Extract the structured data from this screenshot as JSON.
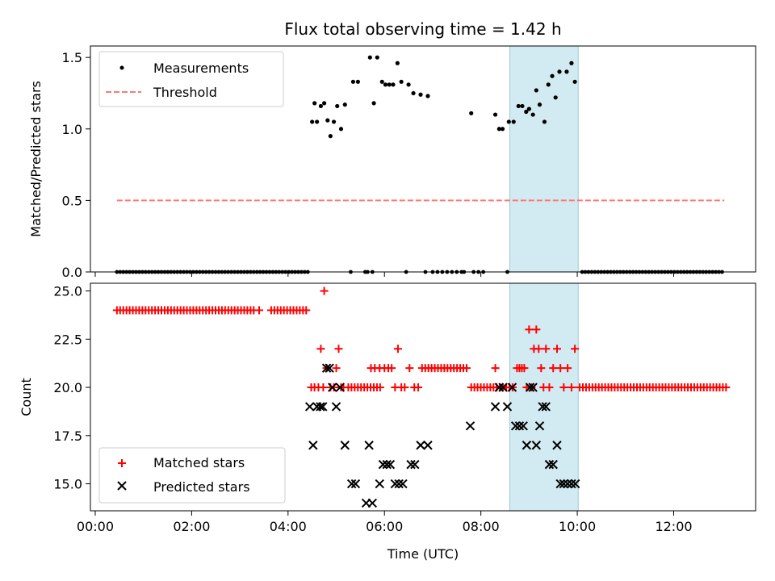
{
  "chart_data": [
    {
      "type": "scatter",
      "title": "Flux total observing time = 1.42 h",
      "xlabel": "",
      "ylabel": "Matched/Predicted stars",
      "xlim": [
        -0.1,
        13.7
      ],
      "ylim": [
        0.0,
        1.58
      ],
      "xticks": [
        0,
        2,
        4,
        6,
        8,
        10,
        12
      ],
      "yticks": [
        0.0,
        0.5,
        1.0,
        1.5
      ],
      "ytick_labels": [
        "0.0",
        "0.5",
        "1.0",
        "1.5"
      ],
      "highlight_span": [
        8.6,
        10.02
      ],
      "legend": {
        "location": "upper-left",
        "entries": [
          "Measurements",
          "Threshold"
        ]
      },
      "threshold": {
        "name": "Threshold",
        "y": 0.5,
        "x_range": [
          0.45,
          13.05
        ],
        "color": "#ff7777"
      },
      "zero_series": {
        "x_start": 0.45,
        "x_end": 4.42,
        "x_step": 0.066
      },
      "zero_points_tail": {
        "x_start": 10.1,
        "x_end": 13.05,
        "x_step": 0.066
      },
      "zero_points_extra": [
        5.3,
        5.6,
        5.65,
        5.75,
        6.45,
        6.85,
        7.0,
        7.1,
        7.2,
        7.3,
        7.4,
        7.5,
        7.6,
        7.65,
        7.85,
        7.95,
        8.05,
        8.55
      ],
      "series": [
        {
          "name": "Measurements",
          "color": "#000000",
          "points": [
            [
              4.5,
              1.05
            ],
            [
              4.55,
              1.18
            ],
            [
              4.6,
              1.05
            ],
            [
              4.68,
              1.16
            ],
            [
              4.75,
              1.18
            ],
            [
              4.82,
              1.06
            ],
            [
              4.88,
              0.95
            ],
            [
              4.95,
              1.05
            ],
            [
              5.02,
              1.16
            ],
            [
              5.1,
              1.0
            ],
            [
              5.18,
              1.17
            ],
            [
              5.35,
              1.33
            ],
            [
              5.45,
              1.33
            ],
            [
              5.7,
              1.5
            ],
            [
              5.78,
              1.18
            ],
            [
              5.85,
              1.5
            ],
            [
              5.95,
              1.33
            ],
            [
              6.02,
              1.31
            ],
            [
              6.1,
              1.31
            ],
            [
              6.18,
              1.31
            ],
            [
              6.27,
              1.46
            ],
            [
              6.35,
              1.33
            ],
            [
              6.5,
              1.31
            ],
            [
              6.6,
              1.25
            ],
            [
              6.75,
              1.24
            ],
            [
              6.9,
              1.23
            ],
            [
              7.8,
              1.11
            ],
            [
              8.3,
              1.1
            ],
            [
              8.38,
              1.0
            ],
            [
              8.45,
              1.0
            ],
            [
              8.58,
              1.05
            ],
            [
              8.68,
              1.05
            ],
            [
              8.78,
              1.16
            ],
            [
              8.86,
              1.16
            ],
            [
              8.94,
              1.12
            ],
            [
              9.0,
              1.14
            ],
            [
              9.08,
              1.1
            ],
            [
              9.15,
              1.27
            ],
            [
              9.22,
              1.17
            ],
            [
              9.32,
              1.05
            ],
            [
              9.4,
              1.31
            ],
            [
              9.48,
              1.37
            ],
            [
              9.55,
              1.22
            ],
            [
              9.63,
              1.4
            ],
            [
              9.78,
              1.4
            ],
            [
              9.88,
              1.46
            ],
            [
              9.95,
              1.33
            ]
          ]
        }
      ]
    },
    {
      "type": "scatter",
      "title": "",
      "xlabel": "Time (UTC)",
      "ylabel": "Count",
      "xlim": [
        -0.1,
        13.7
      ],
      "ylim": [
        13.6,
        25.4
      ],
      "xticks": [
        0,
        2,
        4,
        6,
        8,
        10,
        12
      ],
      "xtick_labels": [
        "00:00",
        "02:00",
        "04:00",
        "06:00",
        "08:00",
        "10:00",
        "12:00"
      ],
      "yticks": [
        15.0,
        17.5,
        20.0,
        22.5,
        25.0
      ],
      "ytick_labels": [
        "15.0",
        "17.5",
        "20.0",
        "22.5",
        "25.0"
      ],
      "highlight_span": [
        8.6,
        10.02
      ],
      "legend": {
        "location": "lower-left",
        "entries": [
          "Matched stars",
          "Predicted stars"
        ]
      },
      "series": [
        {
          "name": "Matched stars",
          "color": "#ff0000",
          "marker": "plus",
          "runs": [
            {
              "x_start": 0.45,
              "x_end": 3.3,
              "x_step": 0.066,
              "y": 24
            },
            {
              "x_start": 3.65,
              "x_end": 4.42,
              "x_step": 0.066,
              "y": 24
            },
            {
              "x_start": 5.25,
              "x_end": 5.95,
              "x_step": 0.066,
              "y": 20
            },
            {
              "x_start": 6.78,
              "x_end": 7.75,
              "x_step": 0.066,
              "y": 21
            },
            {
              "x_start": 7.8,
              "x_end": 8.7,
              "x_step": 0.066,
              "y": 20
            },
            {
              "x_start": 10.05,
              "x_end": 13.1,
              "x_step": 0.066,
              "y": 20
            }
          ],
          "points": [
            [
              3.4,
              24
            ],
            [
              4.75,
              25
            ],
            [
              4.48,
              20
            ],
            [
              4.55,
              20
            ],
            [
              4.63,
              20
            ],
            [
              4.68,
              22
            ],
            [
              4.73,
              20
            ],
            [
              4.8,
              21
            ],
            [
              4.88,
              20
            ],
            [
              4.95,
              20
            ],
            [
              5.0,
              21
            ],
            [
              5.05,
              22
            ],
            [
              5.1,
              20
            ],
            [
              5.15,
              20
            ],
            [
              5.72,
              21
            ],
            [
              5.8,
              21
            ],
            [
              5.9,
              21
            ],
            [
              6.0,
              21
            ],
            [
              6.08,
              21
            ],
            [
              6.15,
              21
            ],
            [
              6.22,
              20
            ],
            [
              6.28,
              22
            ],
            [
              6.35,
              20
            ],
            [
              6.42,
              20
            ],
            [
              6.52,
              21
            ],
            [
              6.62,
              20
            ],
            [
              6.7,
              20
            ],
            [
              8.3,
              21
            ],
            [
              8.75,
              21
            ],
            [
              8.8,
              21
            ],
            [
              8.85,
              21
            ],
            [
              8.9,
              21
            ],
            [
              8.95,
              20
            ],
            [
              9.0,
              23
            ],
            [
              9.05,
              20
            ],
            [
              9.1,
              22
            ],
            [
              9.15,
              23
            ],
            [
              9.2,
              22
            ],
            [
              9.25,
              21
            ],
            [
              9.3,
              20
            ],
            [
              9.35,
              22
            ],
            [
              9.42,
              20
            ],
            [
              9.5,
              21
            ],
            [
              9.58,
              22
            ],
            [
              9.65,
              21
            ],
            [
              9.72,
              20
            ],
            [
              9.8,
              21
            ],
            [
              9.88,
              20
            ],
            [
              9.95,
              22
            ]
          ]
        },
        {
          "name": "Predicted stars",
          "color": "#000000",
          "marker": "x",
          "points": [
            [
              4.45,
              19
            ],
            [
              4.52,
              17
            ],
            [
              4.6,
              19
            ],
            [
              4.67,
              19
            ],
            [
              4.72,
              19
            ],
            [
              4.8,
              21
            ],
            [
              4.86,
              21
            ],
            [
              4.92,
              20
            ],
            [
              5.0,
              19
            ],
            [
              5.08,
              20
            ],
            [
              5.18,
              17
            ],
            [
              5.32,
              15
            ],
            [
              5.4,
              15
            ],
            [
              5.62,
              14
            ],
            [
              5.75,
              14
            ],
            [
              5.68,
              17
            ],
            [
              5.9,
              15
            ],
            [
              5.97,
              16
            ],
            [
              6.05,
              16
            ],
            [
              6.12,
              16
            ],
            [
              6.22,
              15
            ],
            [
              6.3,
              15
            ],
            [
              6.38,
              15
            ],
            [
              6.55,
              16
            ],
            [
              6.63,
              16
            ],
            [
              6.75,
              17
            ],
            [
              6.9,
              17
            ],
            [
              7.78,
              18
            ],
            [
              8.3,
              19
            ],
            [
              8.38,
              20
            ],
            [
              8.46,
              20
            ],
            [
              8.55,
              19
            ],
            [
              8.65,
              20
            ],
            [
              8.72,
              18
            ],
            [
              8.8,
              18
            ],
            [
              8.88,
              18
            ],
            [
              8.95,
              17
            ],
            [
              9.02,
              20
            ],
            [
              9.08,
              20
            ],
            [
              9.15,
              17
            ],
            [
              9.22,
              18
            ],
            [
              9.28,
              19
            ],
            [
              9.35,
              19
            ],
            [
              9.42,
              16
            ],
            [
              9.5,
              16
            ],
            [
              9.58,
              17
            ],
            [
              9.65,
              15
            ],
            [
              9.72,
              15
            ],
            [
              9.8,
              15
            ],
            [
              9.88,
              15
            ],
            [
              9.96,
              15
            ]
          ]
        }
      ]
    }
  ]
}
